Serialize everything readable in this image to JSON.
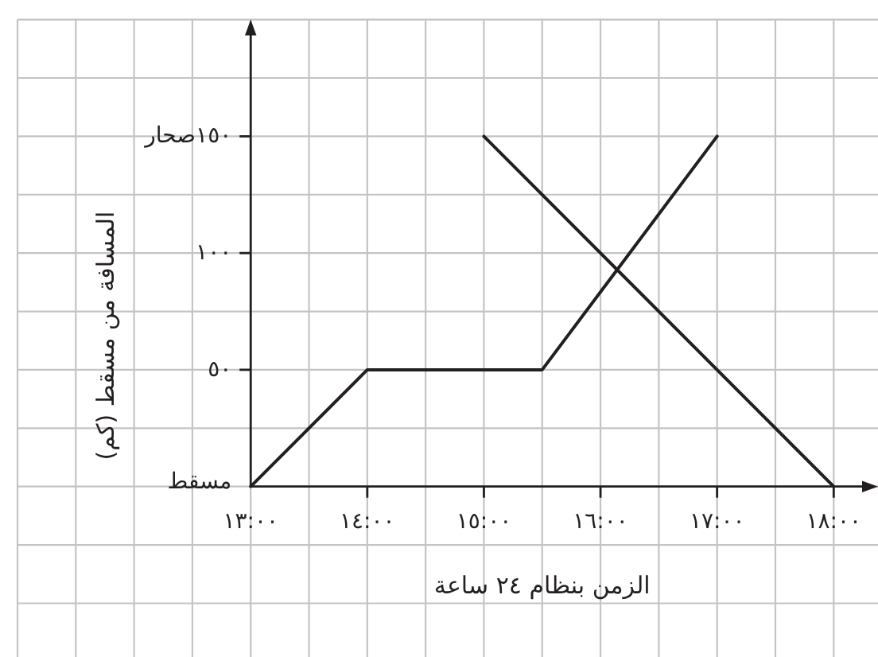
{
  "chart_data": {
    "type": "line",
    "xlabel": "الزمن بنظام ٢٤ ساعة",
    "ylabel": "المسافة من مسقط (كم)",
    "xlim": [
      11,
      18.38
    ],
    "ylim": [
      -73,
      200
    ],
    "xticks": [
      {
        "value": 13,
        "label": "١٣:٠٠"
      },
      {
        "value": 14,
        "label": "١٤:٠٠"
      },
      {
        "value": 15,
        "label": "١٥:٠٠"
      },
      {
        "value": 16,
        "label": "١٦:٠٠"
      },
      {
        "value": 17,
        "label": "١٧:٠٠"
      },
      {
        "value": 18,
        "label": "١٨:٠٠"
      }
    ],
    "yticks": [
      {
        "value": 0,
        "label": "مسقط"
      },
      {
        "value": 50,
        "label": "٥٠"
      },
      {
        "value": 100,
        "label": "١٠٠"
      },
      {
        "value": 150,
        "label": "١٥٠صحار"
      }
    ],
    "grid": true,
    "series": [
      {
        "color": "#231f20",
        "x": [
          13,
          14,
          15.5,
          17
        ],
        "values": [
          0,
          50,
          50,
          150
        ]
      },
      {
        "color": "#231f20",
        "x": [
          15,
          18
        ],
        "values": [
          150,
          0
        ]
      }
    ]
  }
}
